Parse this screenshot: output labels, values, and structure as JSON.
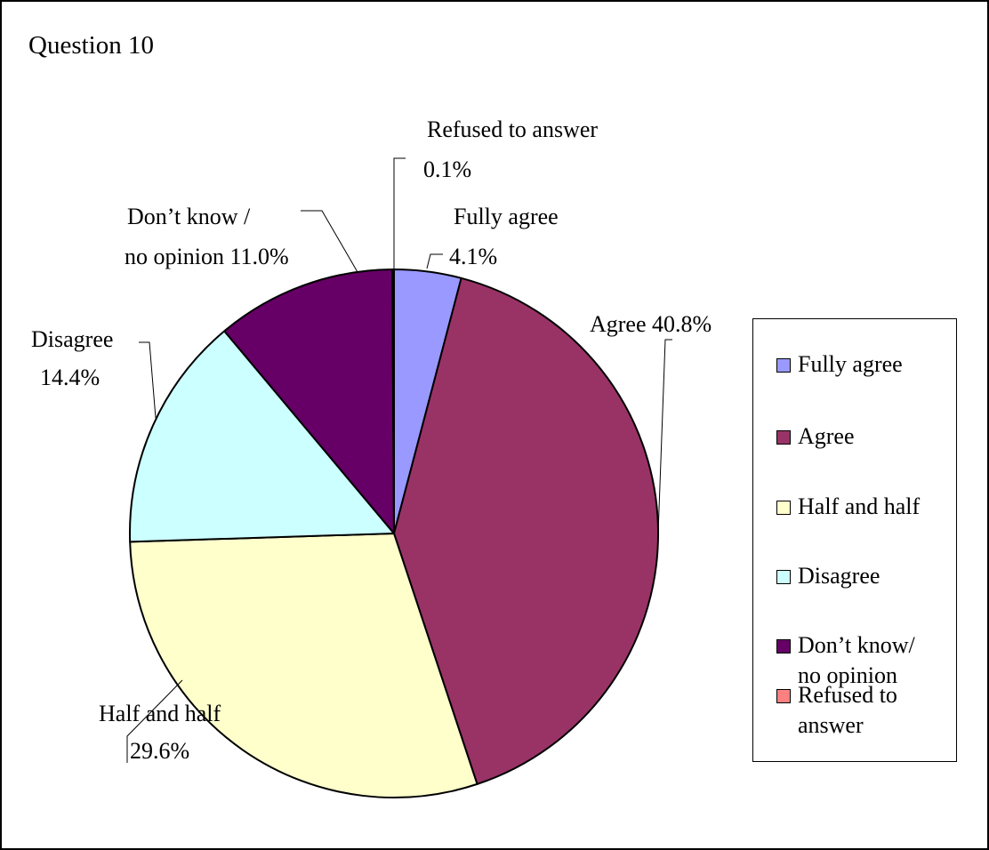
{
  "chart_data": {
    "type": "pie",
    "title": "Question 10",
    "slices": [
      {
        "name": "Fully agree",
        "value": 4.1,
        "color": "#9999FF",
        "data_label": [
          "Fully agree",
          "4.1%"
        ],
        "legend_label": [
          "Fully agree"
        ]
      },
      {
        "name": "Agree",
        "value": 40.8,
        "color": "#993366",
        "data_label": [
          "Agree 40.8%"
        ],
        "legend_label": [
          "Agree"
        ]
      },
      {
        "name": "Half and half",
        "value": 29.6,
        "color": "#FFFFCC",
        "data_label": [
          "Half and half",
          "29.6%"
        ],
        "legend_label": [
          "Half and half"
        ]
      },
      {
        "name": "Disagree",
        "value": 14.4,
        "color": "#CCFFFF",
        "data_label": [
          "Disagree",
          "14.4%"
        ],
        "legend_label": [
          "Disagree"
        ]
      },
      {
        "name": "Don’t know/ no opinion",
        "value": 11.0,
        "color": "#660066",
        "data_label": [
          "Don’t know /",
          "no opinion 11.0%"
        ],
        "legend_label": [
          "Don’t know/",
          "no opinion"
        ]
      },
      {
        "name": "Refused to answer",
        "value": 0.1,
        "color": "#FF8080",
        "data_label": [
          "Refused to answer",
          "0.1%"
        ],
        "legend_label": [
          "Refused to",
          "answer"
        ]
      }
    ],
    "legend_position": "right"
  }
}
